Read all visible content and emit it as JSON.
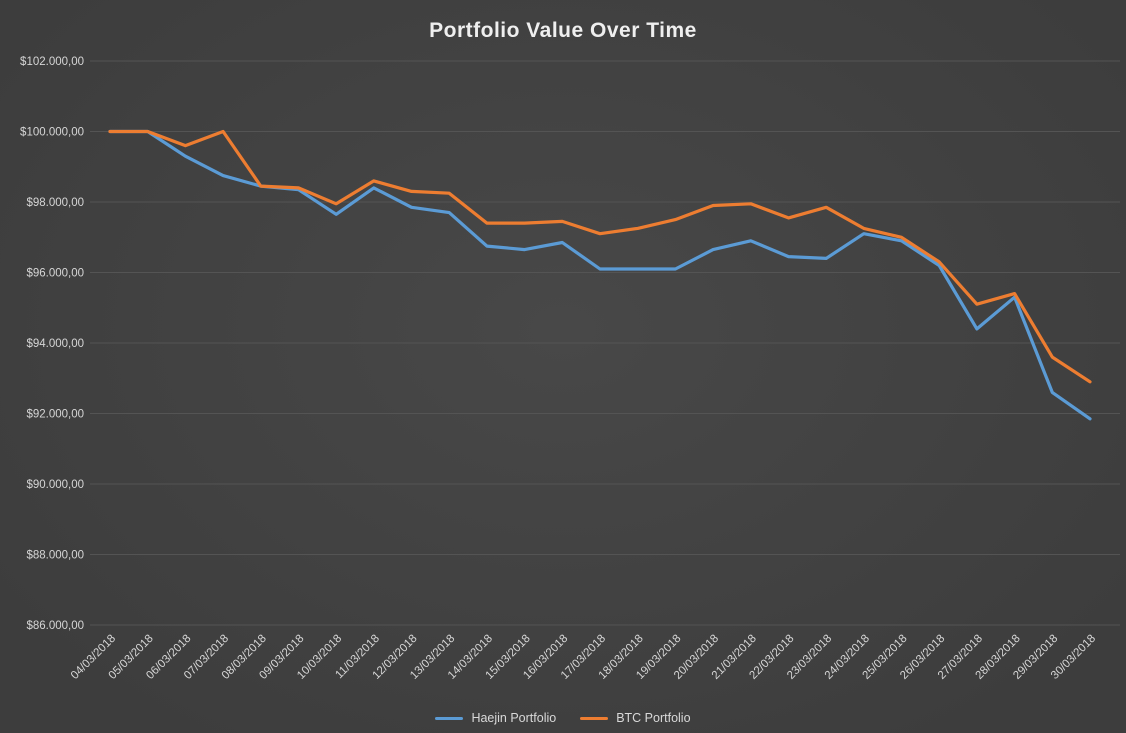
{
  "chart_data": {
    "type": "line",
    "title": "Portfolio Value Over Time",
    "x": [
      "04/03/2018",
      "05/03/2018",
      "06/03/2018",
      "07/03/2018",
      "08/03/2018",
      "09/03/2018",
      "10/03/2018",
      "11/03/2018",
      "12/03/2018",
      "13/03/2018",
      "14/03/2018",
      "15/03/2018",
      "16/03/2018",
      "17/03/2018",
      "18/03/2018",
      "19/03/2018",
      "20/03/2018",
      "21/03/2018",
      "22/03/2018",
      "23/03/2018",
      "24/03/2018",
      "25/03/2018",
      "26/03/2018",
      "27/03/2018",
      "28/03/2018",
      "29/03/2018",
      "30/03/2018"
    ],
    "series": [
      {
        "name": "Haejin Portfolio",
        "color": "#5B9BD5",
        "values": [
          100000,
          100000,
          99300,
          98750,
          98450,
          98350,
          97650,
          98400,
          97850,
          97700,
          96750,
          96650,
          96850,
          96100,
          96100,
          96100,
          96650,
          96900,
          96450,
          96400,
          97100,
          96900,
          96200,
          94400,
          95300,
          92600,
          91850
        ]
      },
      {
        "name": "BTC Portfolio",
        "color": "#ED7D31",
        "values": [
          100000,
          100000,
          99600,
          100000,
          98450,
          98400,
          97950,
          98600,
          98300,
          98250,
          97400,
          97400,
          97450,
          97100,
          97250,
          97500,
          97900,
          97950,
          97550,
          97850,
          97250,
          97000,
          96300,
          95100,
          95400,
          93600,
          92900
        ]
      }
    ],
    "ylim": [
      86000,
      102000
    ],
    "yticks": [
      {
        "value": 86000,
        "label": "$86.000,00"
      },
      {
        "value": 88000,
        "label": "$88.000,00"
      },
      {
        "value": 90000,
        "label": "$90.000,00"
      },
      {
        "value": 92000,
        "label": "$92.000,00"
      },
      {
        "value": 94000,
        "label": "$94.000,00"
      },
      {
        "value": 96000,
        "label": "$96.000,00"
      },
      {
        "value": 98000,
        "label": "$98.000,00"
      },
      {
        "value": 100000,
        "label": "$100.000,00"
      },
      {
        "value": 102000,
        "label": "$102.000,00"
      }
    ],
    "grid": true,
    "legend_position": "bottom"
  },
  "colors": {
    "background": "#404040",
    "gridline": "#545454",
    "axis_text": "#d6d6d6",
    "title_text": "#efefef",
    "series_blue": "#5B9BD5",
    "series_orange": "#ED7D31"
  }
}
